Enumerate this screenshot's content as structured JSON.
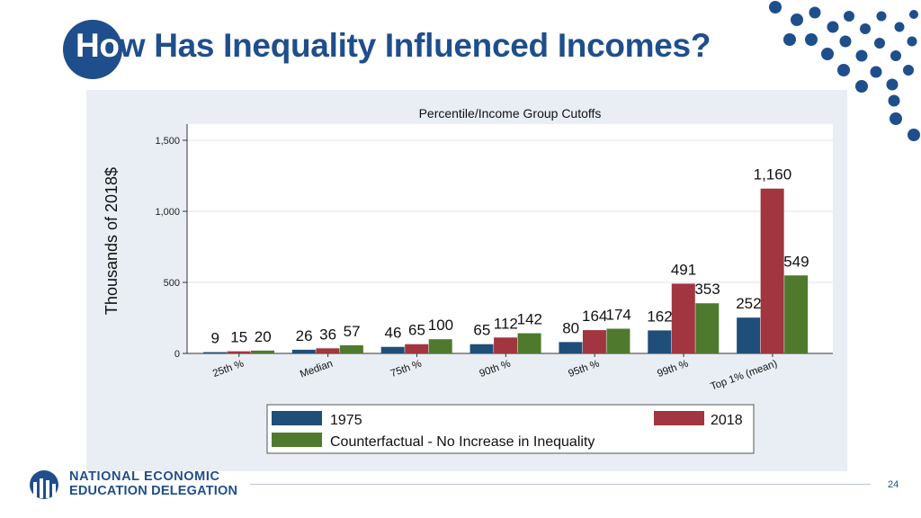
{
  "slide": {
    "title_lead": "Ho",
    "title_rest": "w Has Inequality Influenced Incomes?",
    "page_number": "24"
  },
  "org": {
    "line1": "NATIONAL ECONOMIC",
    "line2": "EDUCATION DELEGATION",
    "logo_icon": "columns-globe-icon"
  },
  "colors": {
    "brand_blue": "#1f4e8c",
    "series_1975": "#1f4e79",
    "series_2018": "#a13540",
    "series_counterfactual": "#4f7a2e",
    "panel_bg": "#e8eef4"
  },
  "chart_data": {
    "type": "bar",
    "title": "Percentile/Income Group Cutoffs",
    "xlabel": "",
    "ylabel": "Thousands of 2018$",
    "ylim": [
      0,
      1500
    ],
    "yticks": [
      0,
      500,
      1000,
      1500
    ],
    "ytick_labels": [
      "0",
      "500",
      "1,000",
      "1,500"
    ],
    "grid": true,
    "legend_position": "bottom",
    "categories": [
      "25th %",
      "Median",
      "75th %",
      "90th %",
      "95th %",
      "99th %",
      "Top 1% (mean)"
    ],
    "series": [
      {
        "name": "1975",
        "values": [
          9,
          26,
          46,
          65,
          80,
          162,
          252
        ],
        "labels": [
          "9",
          "26",
          "46",
          "65",
          "80",
          "162",
          "252"
        ]
      },
      {
        "name": "2018",
        "values": [
          15,
          36,
          65,
          112,
          164,
          491,
          1160
        ],
        "labels": [
          "15",
          "36",
          "65",
          "112",
          "164",
          "491",
          "1,160"
        ]
      },
      {
        "name": "Counterfactual - No Increase in Inequality",
        "values": [
          20,
          57,
          100,
          142,
          174,
          353,
          549
        ],
        "labels": [
          "20",
          "57",
          "100",
          "142",
          "174",
          "353",
          "549"
        ]
      }
    ]
  }
}
